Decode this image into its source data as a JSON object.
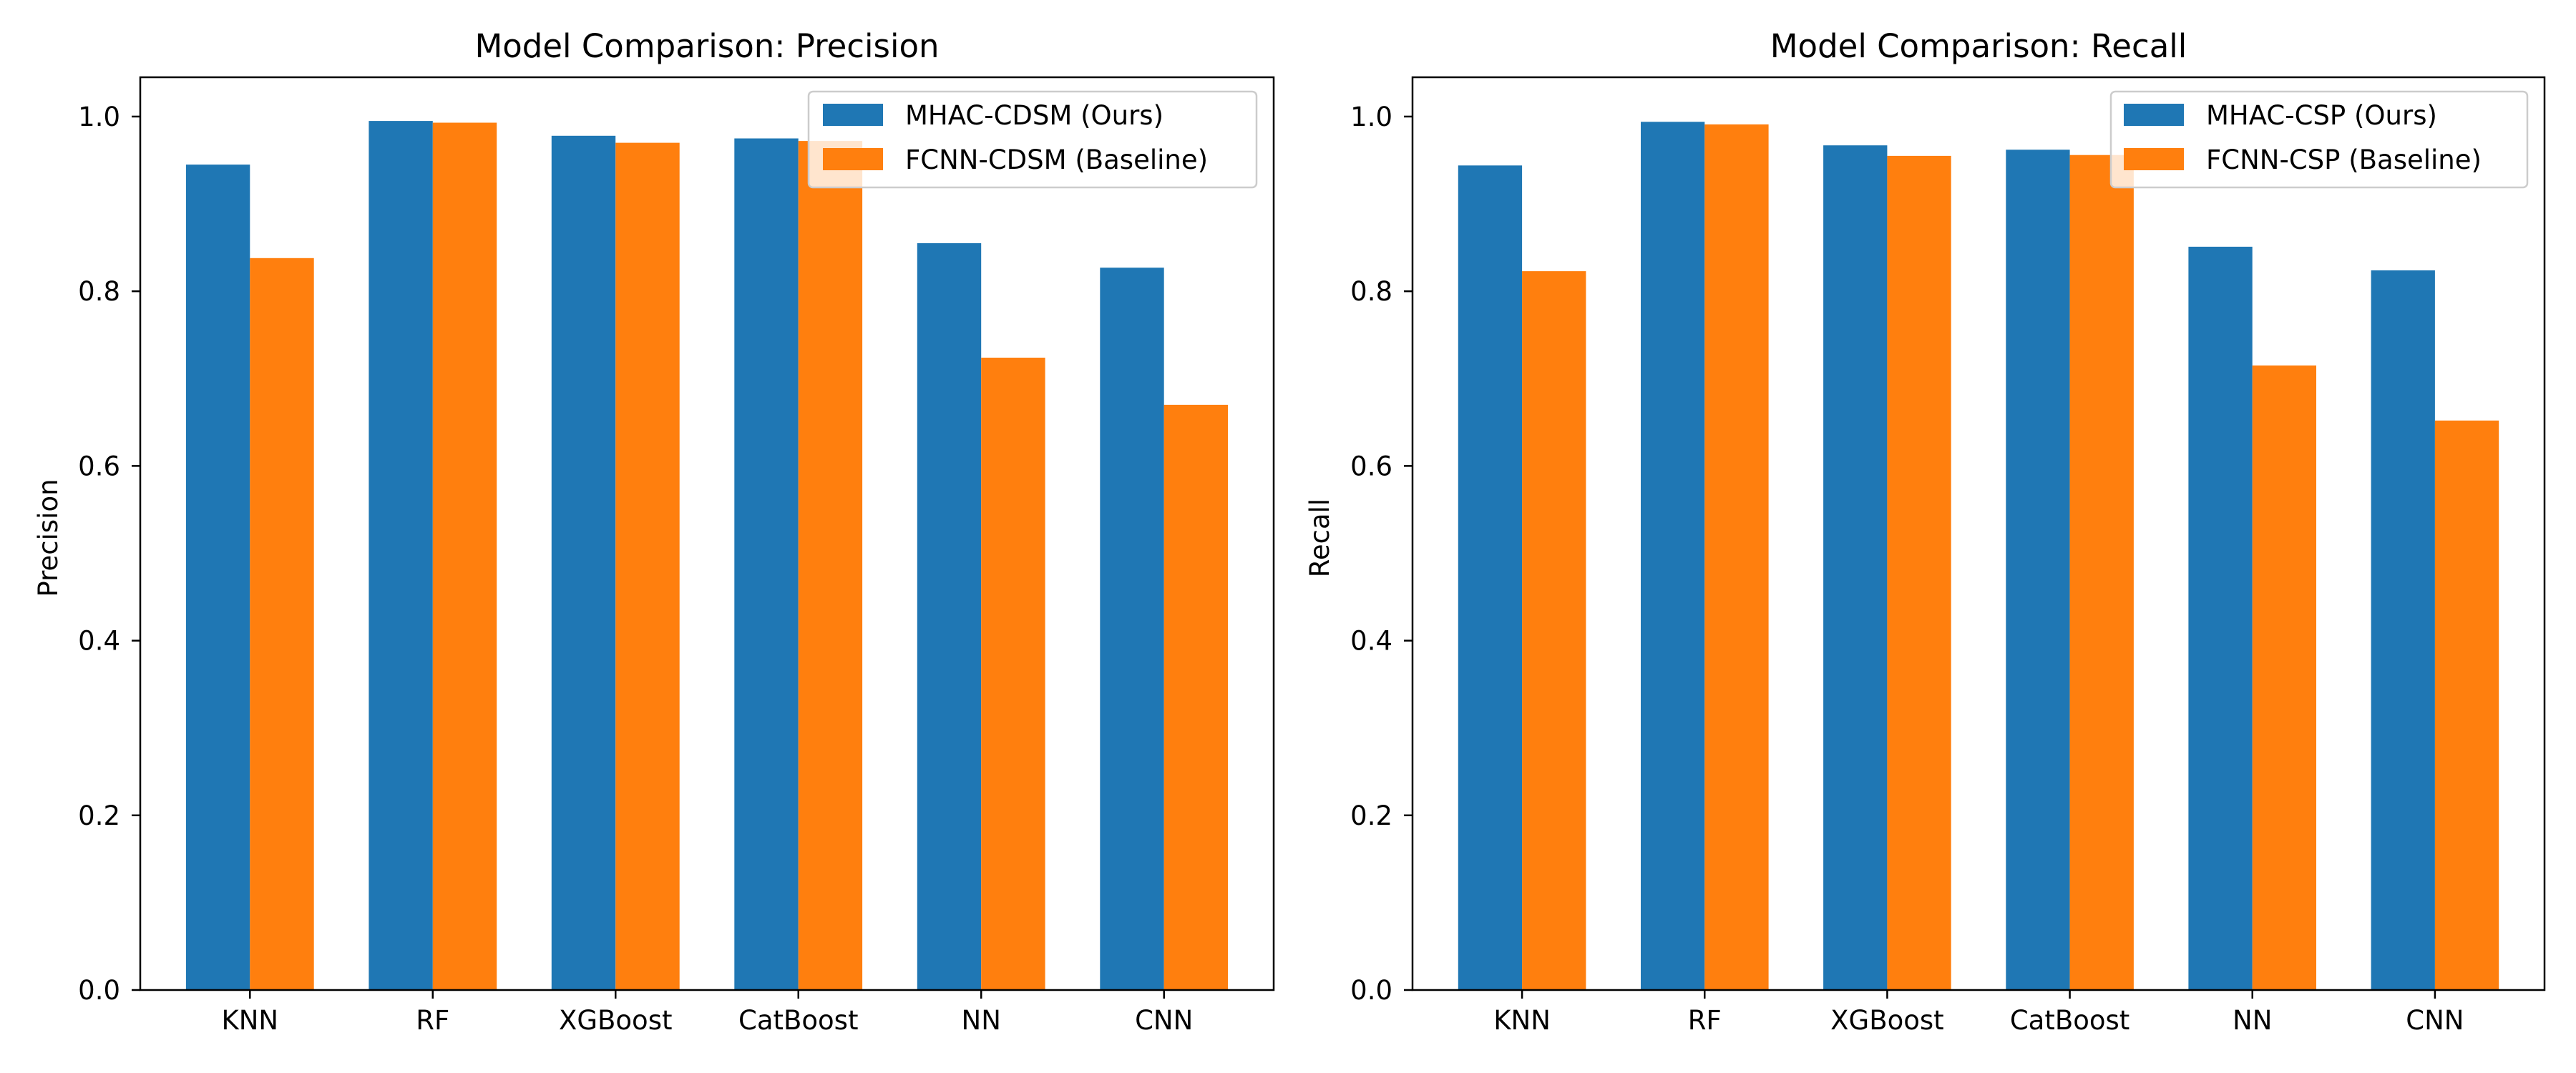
{
  "charts": [
    {
      "type": "bar",
      "title": "Model Comparison: Precision",
      "xlabel": "",
      "ylabel": "Precision",
      "categories": [
        "KNN",
        "RF",
        "XGBoost",
        "CatBoost",
        "NN",
        "CNN"
      ],
      "series": [
        {
          "name": "MHAC-CDSM (Ours)",
          "color": "#1f77b4",
          "values": [
            0.945,
            0.995,
            0.978,
            0.975,
            0.855,
            0.827
          ]
        },
        {
          "name": "FCNN-CDSM (Baseline)",
          "color": "#ff7f0e",
          "values": [
            0.838,
            0.993,
            0.97,
            0.972,
            0.724,
            0.67
          ]
        }
      ],
      "ylim": [
        0,
        1.045
      ],
      "yticks": [
        0.0,
        0.2,
        0.4,
        0.6,
        0.8,
        1.0
      ],
      "ytick_labels": [
        "0.0",
        "0.2",
        "0.4",
        "0.6",
        "0.8",
        "1.0"
      ],
      "grid": false,
      "legend_position": "top-right"
    },
    {
      "type": "bar",
      "title": "Model Comparison: Recall",
      "xlabel": "",
      "ylabel": "Recall",
      "categories": [
        "KNN",
        "RF",
        "XGBoost",
        "CatBoost",
        "NN",
        "CNN"
      ],
      "series": [
        {
          "name": "MHAC-CSP (Ours)",
          "color": "#1f77b4",
          "values": [
            0.944,
            0.994,
            0.967,
            0.962,
            0.851,
            0.824
          ]
        },
        {
          "name": "FCNN-CSP (Baseline)",
          "color": "#ff7f0e",
          "values": [
            0.823,
            0.991,
            0.955,
            0.956,
            0.715,
            0.652
          ]
        }
      ],
      "ylim": [
        0,
        1.045
      ],
      "yticks": [
        0.0,
        0.2,
        0.4,
        0.6,
        0.8,
        1.0
      ],
      "ytick_labels": [
        "0.0",
        "0.2",
        "0.4",
        "0.6",
        "0.8",
        "1.0"
      ],
      "grid": false,
      "legend_position": "top-right"
    }
  ],
  "chart_data": [
    {
      "type": "bar",
      "title": "Model Comparison: Precision",
      "xlabel": "",
      "ylabel": "Precision",
      "categories": [
        "KNN",
        "RF",
        "XGBoost",
        "CatBoost",
        "NN",
        "CNN"
      ],
      "series": [
        {
          "name": "MHAC-CDSM (Ours)",
          "values": [
            0.945,
            0.995,
            0.978,
            0.975,
            0.855,
            0.827
          ]
        },
        {
          "name": "FCNN-CDSM (Baseline)",
          "values": [
            0.838,
            0.993,
            0.97,
            0.972,
            0.724,
            0.67
          ]
        }
      ],
      "ylim": [
        0,
        1.045
      ],
      "grid": false,
      "legend_position": "top-right"
    },
    {
      "type": "bar",
      "title": "Model Comparison: Recall",
      "xlabel": "",
      "ylabel": "Recall",
      "categories": [
        "KNN",
        "RF",
        "XGBoost",
        "CatBoost",
        "NN",
        "CNN"
      ],
      "series": [
        {
          "name": "MHAC-CSP (Ours)",
          "values": [
            0.944,
            0.994,
            0.967,
            0.962,
            0.851,
            0.824
          ]
        },
        {
          "name": "FCNN-CSP (Baseline)",
          "values": [
            0.823,
            0.991,
            0.955,
            0.956,
            0.715,
            0.652
          ]
        }
      ],
      "ylim": [
        0,
        1.045
      ],
      "grid": false,
      "legend_position": "top-right"
    }
  ]
}
